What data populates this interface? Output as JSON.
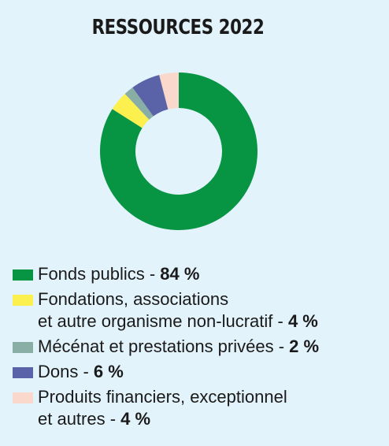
{
  "title": "RESSOURCES 2022",
  "chart_data": {
    "type": "pie",
    "donut": true,
    "title": "RESSOURCES 2022",
    "slices": [
      {
        "label": "Fonds publics",
        "value": 84,
        "color": "#079443"
      },
      {
        "label": "Fondations, associations et autre organisme non-lucratif",
        "value": 4,
        "color": "#fbf04e"
      },
      {
        "label": "Mécénat et prestations privées",
        "value": 2,
        "color": "#88aea6"
      },
      {
        "label": "Dons",
        "value": 6,
        "color": "#5a62a8"
      },
      {
        "label": "Produits financiers, exceptionnel et autres",
        "value": 4,
        "color": "#fad8cc"
      }
    ]
  },
  "legend": [
    {
      "line1": "Fonds publics - ",
      "line2": "",
      "pct": "84 %"
    },
    {
      "line1": "Fondations, associations",
      "line2": "et autre organisme non-lucratif - ",
      "pct": "4 %"
    },
    {
      "line1": "Mécénat et prestations privées - ",
      "line2": "",
      "pct": "2 %"
    },
    {
      "line1": "Dons - ",
      "line2": "",
      "pct": "6 %"
    },
    {
      "line1": "Produits financiers, exceptionnel",
      "line2": "et autres - ",
      "pct": "4 %"
    }
  ]
}
